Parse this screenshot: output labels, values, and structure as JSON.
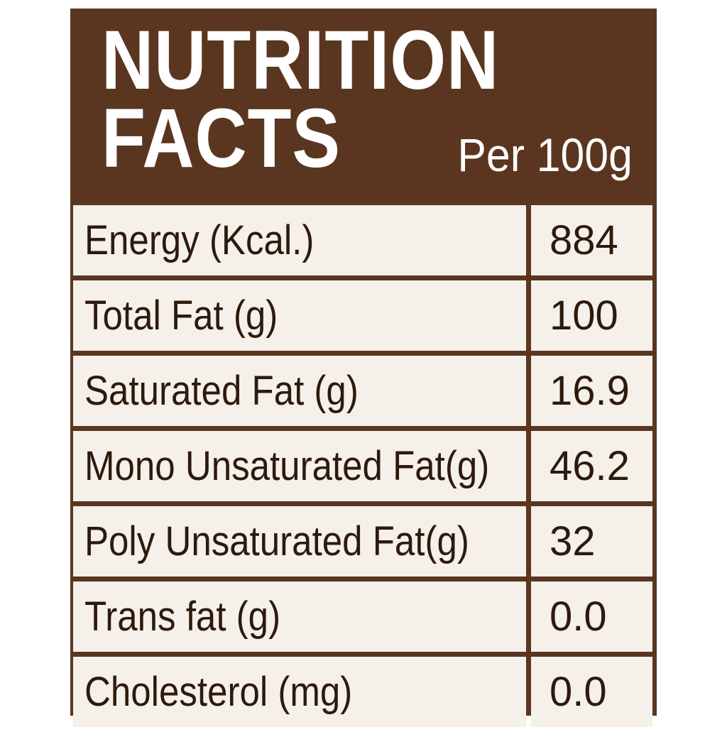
{
  "header": {
    "title": "NUTRITION\nFACTS",
    "serving": "Per 100g"
  },
  "rows": [
    {
      "label": "Energy (Kcal.)",
      "value": "884"
    },
    {
      "label": "Total Fat (g)",
      "value": "100"
    },
    {
      "label": "Saturated Fat (g)",
      "value": "16.9"
    },
    {
      "label": "Mono Unsaturated Fat(g)",
      "value": "46.2"
    },
    {
      "label": "Poly Unsaturated Fat(g)",
      "value": "32"
    },
    {
      "label": "Trans fat (g)",
      "value": "0.0"
    },
    {
      "label": "Cholesterol (mg)",
      "value": "0.0"
    }
  ],
  "colors": {
    "header_brown": "#5a3620",
    "cell_background": "#f5f0ea",
    "text_dark": "#2d1a0d"
  }
}
